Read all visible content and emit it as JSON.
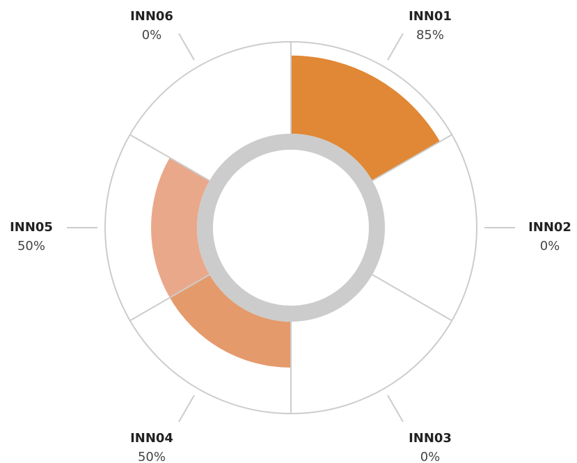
{
  "chart_data": {
    "type": "radial-bar",
    "categories": [
      "INN01",
      "INN02",
      "INN03",
      "INN04",
      "INN05",
      "INN06"
    ],
    "values": [
      85,
      0,
      0,
      50,
      50,
      0
    ],
    "value_labels": [
      "85%",
      "0%",
      "0%",
      "50%",
      "50%",
      "0%"
    ],
    "colors": [
      "#e08835",
      "#e39160",
      "#e59a6c",
      "#e59a6c",
      "#eaa88a",
      "#eaa88a"
    ],
    "rlim": [
      0,
      100
    ]
  }
}
